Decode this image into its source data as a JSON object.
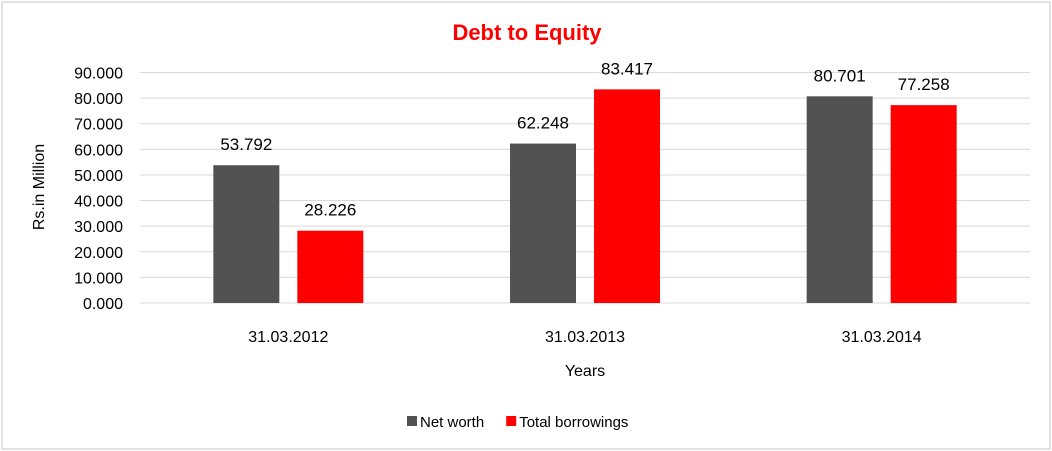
{
  "chart_data": {
    "type": "bar",
    "title": "Debt to Equity",
    "xlabel": "Years",
    "ylabel": "Rs.in Million",
    "categories": [
      "31.03.2012",
      "31.03.2013",
      "31.03.2014"
    ],
    "series": [
      {
        "name": "Net worth",
        "color": "#525252",
        "values": [
          53.792,
          62.248,
          80.701
        ],
        "labels": [
          "53.792",
          "62.248",
          "80.701"
        ]
      },
      {
        "name": "Total borrowings",
        "color": "#ff0000",
        "values": [
          28.226,
          83.417,
          77.258
        ],
        "labels": [
          "28.226",
          "83.417",
          "77.258"
        ]
      }
    ],
    "ylim": [
      0,
      90
    ],
    "yticks": [
      "0.000",
      "10.000",
      "20.000",
      "30.000",
      "40.000",
      "50.000",
      "60.000",
      "70.000",
      "80.000",
      "90.000"
    ],
    "grid": true,
    "legend": "bottom",
    "title_color": "#ff0000"
  }
}
